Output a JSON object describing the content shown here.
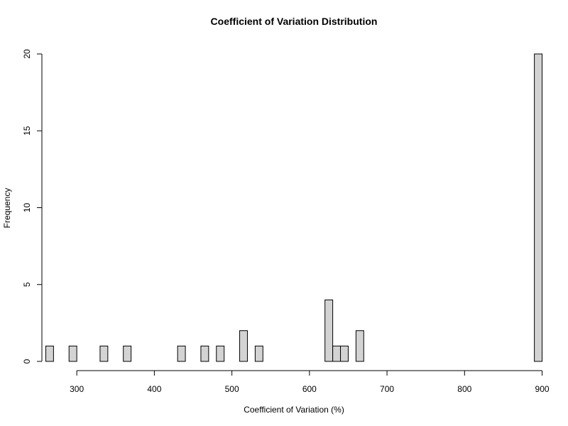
{
  "chart_data": {
    "type": "bar",
    "title": "Coefficient of Variation Distribution",
    "xlabel": "Coefficient of Variation (%)",
    "ylabel": "Frequency",
    "xlim": [
      255,
      905
    ],
    "ylim": [
      0,
      20
    ],
    "x_ticks": [
      "300",
      "400",
      "500",
      "600",
      "700",
      "800",
      "900"
    ],
    "y_ticks": [
      "0",
      "5",
      "10",
      "15",
      "20"
    ],
    "bin_start": 260,
    "bin_width": 10,
    "counts": [
      1,
      0,
      0,
      1,
      0,
      0,
      0,
      1,
      0,
      0,
      1,
      0,
      0,
      0,
      0,
      0,
      0,
      1,
      0,
      0,
      1,
      0,
      1,
      0,
      0,
      2,
      0,
      1,
      0,
      0,
      0,
      0,
      0,
      0,
      0,
      0,
      4,
      1,
      1,
      0,
      2,
      0,
      0,
      0,
      0,
      0,
      0,
      0,
      0,
      0,
      0,
      0,
      0,
      0,
      0,
      0,
      0,
      0,
      0,
      0,
      0,
      0,
      0,
      20
    ],
    "bar_fill": "#d3d3d3",
    "bar_stroke": "#000000",
    "grid": false
  }
}
